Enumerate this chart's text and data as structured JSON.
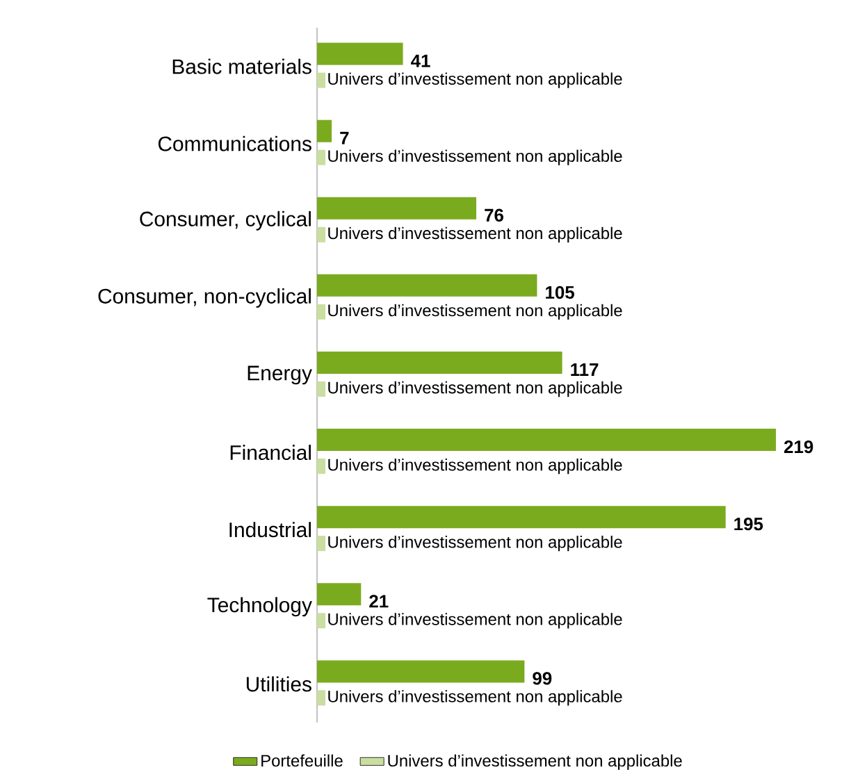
{
  "chart_data": {
    "type": "bar",
    "orientation": "horizontal",
    "legend": "bottom",
    "categories": [
      "Basic materials",
      "Communications",
      "Consumer, cyclical",
      "Consumer, non-cyclical",
      "Energy",
      "Financial",
      "Industrial",
      "Technology",
      "Utilities"
    ],
    "series": [
      {
        "name": "Portefeuille",
        "color": "#7aab1e",
        "values": [
          41,
          7,
          76,
          105,
          117,
          219,
          195,
          21,
          99
        ],
        "data_labels": true
      },
      {
        "name": "Univers d’investissement non applicable",
        "color": "#c9dea0",
        "values": [
          4,
          4,
          4,
          4,
          4,
          4,
          4,
          4,
          4
        ],
        "value_labels": [
          "Univers d’investissement non applicable",
          "Univers d’investissement non applicable",
          "Univers d’investissement non applicable",
          "Univers d’investissement non applicable",
          "Univers d’investissement non applicable",
          "Univers d’investissement non applicable",
          "Univers d’investissement non applicable",
          "Univers d’investissement non applicable",
          "Univers d’investissement non applicable"
        ]
      }
    ]
  }
}
